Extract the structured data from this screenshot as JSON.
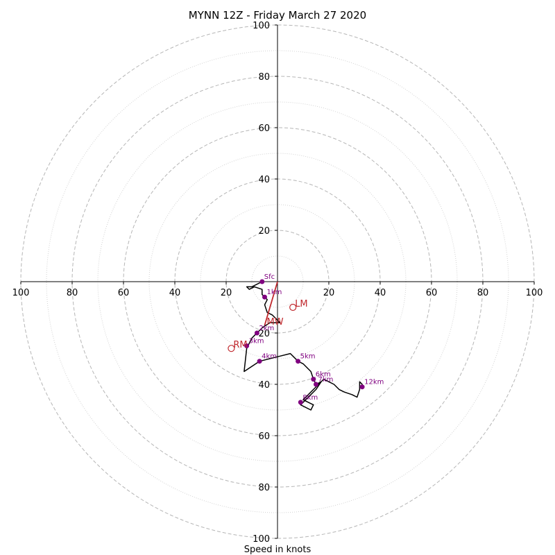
{
  "chart_data": {
    "type": "scatter",
    "title": "MYNN 12Z - Friday March 27 2020",
    "xlabel": "Speed in knots",
    "ylabel": "",
    "xlim": [
      -100,
      100
    ],
    "ylim": [
      -100,
      100
    ],
    "rings_dashed": [
      20,
      40,
      60,
      80,
      100
    ],
    "rings_dotted": [
      10,
      30,
      50,
      70,
      90
    ],
    "x_tick_labels": [
      "100",
      "80",
      "60",
      "40",
      "20",
      "20",
      "40",
      "60",
      "80",
      "100"
    ],
    "x_tick_values": [
      -100,
      -80,
      -60,
      -40,
      -20,
      20,
      40,
      60,
      80,
      100
    ],
    "y_tick_labels_upper": [
      "20",
      "40",
      "60",
      "80",
      "100"
    ],
    "y_tick_values_upper": [
      20,
      40,
      60,
      80,
      100
    ],
    "y_tick_labels_lower": [
      "20",
      "40",
      "60",
      "80",
      "100"
    ],
    "y_tick_values_lower": [
      -20,
      -40,
      -60,
      -80,
      -100
    ],
    "hodograph_trace": [
      [
        -6,
        0
      ],
      [
        -8,
        -1
      ],
      [
        -10,
        -2
      ],
      [
        -12,
        -2
      ],
      [
        -11,
        -3
      ],
      [
        -9,
        -2
      ],
      [
        -6,
        -3
      ],
      [
        -6,
        -5
      ],
      [
        -5,
        -6
      ],
      [
        -4,
        -7
      ],
      [
        -5,
        -9
      ],
      [
        -4,
        -12
      ],
      [
        -2,
        -13
      ],
      [
        0,
        -15
      ],
      [
        1,
        -16
      ],
      [
        -3,
        -16
      ],
      [
        -6,
        -18
      ],
      [
        -8,
        -20
      ],
      [
        -9,
        -21
      ],
      [
        -10,
        -22
      ],
      [
        -11,
        -24
      ],
      [
        -12,
        -26
      ],
      [
        -13,
        -35
      ],
      [
        -7,
        -31
      ],
      [
        1,
        -29
      ],
      [
        5,
        -28
      ],
      [
        6,
        -29
      ],
      [
        8,
        -31
      ],
      [
        10,
        -32
      ],
      [
        13,
        -35
      ],
      [
        14,
        -38
      ],
      [
        15,
        -40
      ],
      [
        17,
        -39
      ],
      [
        15,
        -42
      ],
      [
        13,
        -44
      ],
      [
        11,
        -46
      ],
      [
        9,
        -48
      ],
      [
        13,
        -50
      ],
      [
        14,
        -48
      ],
      [
        12,
        -47
      ],
      [
        10,
        -46
      ],
      [
        12,
        -44
      ],
      [
        14,
        -42
      ],
      [
        16,
        -40
      ],
      [
        18,
        -38
      ],
      [
        20,
        -39
      ],
      [
        22,
        -40
      ],
      [
        24,
        -42
      ],
      [
        26,
        -43
      ],
      [
        29,
        -44
      ],
      [
        31,
        -45
      ],
      [
        32,
        -42
      ],
      [
        32,
        -39
      ],
      [
        33,
        -40
      ],
      [
        33,
        -41
      ]
    ],
    "levels": [
      {
        "label": "Sfc",
        "x": -6,
        "y": 0
      },
      {
        "label": "1km",
        "x": -5,
        "y": -6
      },
      {
        "label": "2km",
        "x": -8,
        "y": -20
      },
      {
        "label": "3km",
        "x": -12,
        "y": -25
      },
      {
        "label": "4km",
        "x": -7,
        "y": -31
      },
      {
        "label": "5km",
        "x": 8,
        "y": -31
      },
      {
        "label": "6km",
        "x": 14,
        "y": -38
      },
      {
        "label": "7km",
        "x": 15,
        "y": -40
      },
      {
        "label": "8km",
        "x": 9,
        "y": -47
      },
      {
        "label": "12km",
        "x": 33,
        "y": -41
      }
    ],
    "mean_wind_line": [
      [
        0,
        0
      ],
      [
        -5,
        -17
      ]
    ],
    "motion_markers": [
      {
        "label": "LM",
        "x": 6,
        "y": -10
      },
      {
        "label": "RM",
        "x": -18,
        "y": -26
      },
      {
        "label": "MW",
        "x": -5,
        "y": -17
      }
    ],
    "colors": {
      "trace": "#000000",
      "levels": "#800080",
      "motion": "#c0282d",
      "grid": "#b5b5b5"
    }
  }
}
